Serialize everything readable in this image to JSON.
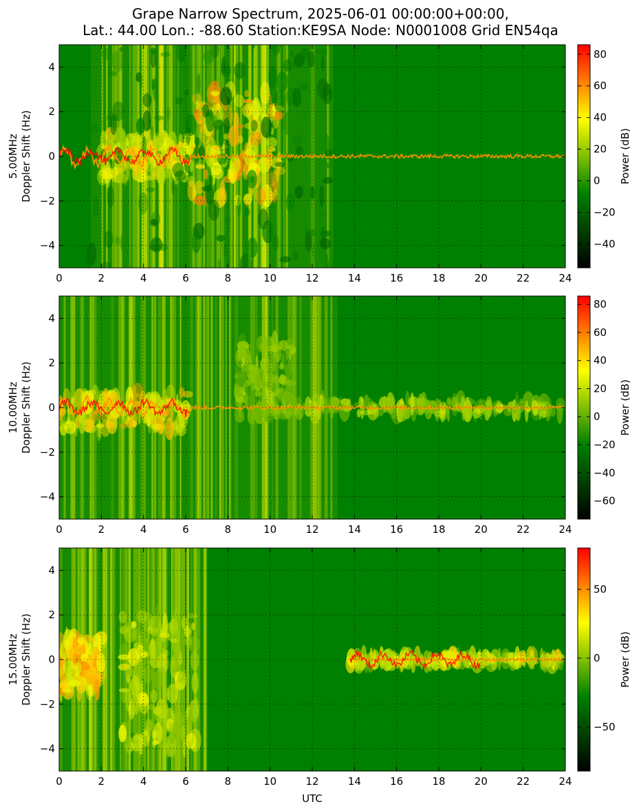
{
  "figure": {
    "title_line1": "Grape Narrow Spectrum, 2025-06-01 00:00:00+00:00,",
    "title_line2": "Lat.: 44.00 Lon.: -88.60 Station:KE9SA Node: N0001008 Grid EN54qa",
    "xlabel": "UTC"
  },
  "colors": {
    "background": "#008000",
    "colormap": [
      "#000000",
      "#008000",
      "#ffff00",
      "#ff0000"
    ]
  },
  "chart_data": [
    {
      "type": "heatmap",
      "freq_label": "5.00MHz",
      "ylabel": "Doppler Shift (Hz)",
      "xlabel": "",
      "xlim": [
        0,
        24
      ],
      "ylim": [
        -5,
        5
      ],
      "xticks": [
        0,
        2,
        4,
        6,
        8,
        10,
        12,
        14,
        16,
        18,
        20,
        22,
        24
      ],
      "yticks": [
        -4,
        -2,
        0,
        2,
        4
      ],
      "grid": true,
      "colorbar": {
        "label": "Power (dB)",
        "range": [
          -55,
          86
        ],
        "ticks": [
          -40,
          -20,
          0,
          20,
          40,
          60,
          80
        ]
      },
      "active_band_utc": [
        1.5,
        13
      ],
      "carrier_utc": [
        0,
        24
      ],
      "burst_regions": [
        {
          "utc": [
            2,
            6.2
          ],
          "doppler": [
            -1,
            1
          ],
          "level": 0.7
        },
        {
          "utc": [
            6.2,
            10.5
          ],
          "doppler": [
            -2,
            3
          ],
          "level": 0.8
        },
        {
          "utc": [
            1.5,
            13
          ],
          "doppler": [
            -5,
            5
          ],
          "level": 0.35
        }
      ]
    },
    {
      "type": "heatmap",
      "freq_label": "10.00MHz",
      "ylabel": "Doppler Shift (Hz)",
      "xlabel": "",
      "xlim": [
        0,
        24
      ],
      "ylim": [
        -5,
        5
      ],
      "xticks": [
        0,
        2,
        4,
        6,
        8,
        10,
        12,
        14,
        16,
        18,
        20,
        22,
        24
      ],
      "yticks": [
        -4,
        -2,
        0,
        2,
        4
      ],
      "grid": true,
      "colorbar": {
        "label": "Power (dB)",
        "range": [
          -73,
          86
        ],
        "ticks": [
          -60,
          -40,
          -20,
          0,
          20,
          40,
          60,
          80
        ]
      },
      "active_band_utc": [
        0,
        13.2
      ],
      "carrier_utc": [
        0,
        24
      ],
      "burst_regions": [
        {
          "utc": [
            0,
            6.1
          ],
          "doppler": [
            -1,
            0.7
          ],
          "level": 0.75
        },
        {
          "utc": [
            8.5,
            11
          ],
          "doppler": [
            -0.5,
            3
          ],
          "level": 0.55
        },
        {
          "utc": [
            11,
            24
          ],
          "doppler": [
            -0.3,
            0.3
          ],
          "level": 0.6
        }
      ]
    },
    {
      "type": "heatmap",
      "freq_label": "15.00MHz",
      "ylabel": "Doppler Shift (Hz)",
      "xlabel": "UTC",
      "xlim": [
        0,
        24
      ],
      "ylim": [
        -5,
        5
      ],
      "xticks": [
        0,
        2,
        4,
        6,
        8,
        10,
        12,
        14,
        16,
        18,
        20,
        22,
        24
      ],
      "yticks": [
        -4,
        -2,
        0,
        2,
        4
      ],
      "grid": true,
      "colorbar": {
        "label": "Power (dB)",
        "range": [
          -82,
          80
        ],
        "ticks": [
          -50,
          0,
          50
        ]
      },
      "active_band_utc": [
        0,
        7
      ],
      "carrier_utc": [
        13.8,
        24
      ],
      "burst_regions": [
        {
          "utc": [
            0,
            2
          ],
          "doppler": [
            -1.5,
            1
          ],
          "level": 0.8
        },
        {
          "utc": [
            3,
            6.5
          ],
          "doppler": [
            -4,
            2
          ],
          "level": 0.65
        },
        {
          "utc": [
            13.8,
            23.8
          ],
          "doppler": [
            -0.2,
            0.2
          ],
          "level": 0.7
        }
      ]
    }
  ]
}
